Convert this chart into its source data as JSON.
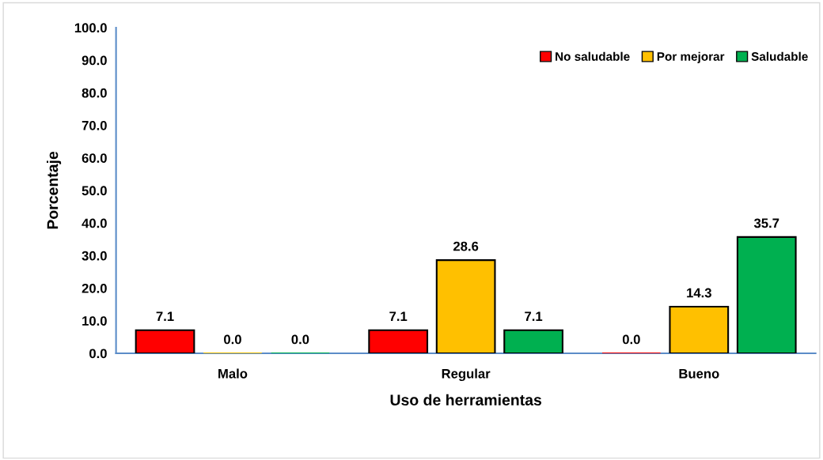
{
  "chart_data": {
    "type": "bar",
    "xlabel": "Uso de herramientas",
    "ylabel": "Porcentaje",
    "categories": [
      "Malo",
      "Regular",
      "Bueno"
    ],
    "series": [
      {
        "name": "No saludable",
        "color": "#ff0000",
        "values": [
          7.1,
          7.1,
          0.0
        ],
        "value_labels": [
          "7.1",
          "7.1",
          "0.0"
        ]
      },
      {
        "name": "Por mejorar",
        "color": "#ffc000",
        "values": [
          0.0,
          28.6,
          14.3
        ],
        "value_labels": [
          "0.0",
          "28.6",
          "14.3"
        ]
      },
      {
        "name": "Saludable",
        "color": "#00b050",
        "values": [
          0.0,
          7.1,
          35.7
        ],
        "value_labels": [
          "0.0",
          "7.1",
          "35.7"
        ]
      }
    ],
    "ylim": [
      0,
      100
    ],
    "yticks": [
      {
        "value": 0,
        "label": "0.0"
      },
      {
        "value": 10,
        "label": "10.0"
      },
      {
        "value": 20,
        "label": "20.0"
      },
      {
        "value": 30,
        "label": "30.0"
      },
      {
        "value": 40,
        "label": "40.0"
      },
      {
        "value": 50,
        "label": "50.0"
      },
      {
        "value": 60,
        "label": "60.0"
      },
      {
        "value": 70,
        "label": "70.0"
      },
      {
        "value": 80,
        "label": "80.0"
      },
      {
        "value": 90,
        "label": "90.0"
      },
      {
        "value": 100,
        "label": "100.0"
      }
    ],
    "legend": "top right",
    "grid": false
  }
}
